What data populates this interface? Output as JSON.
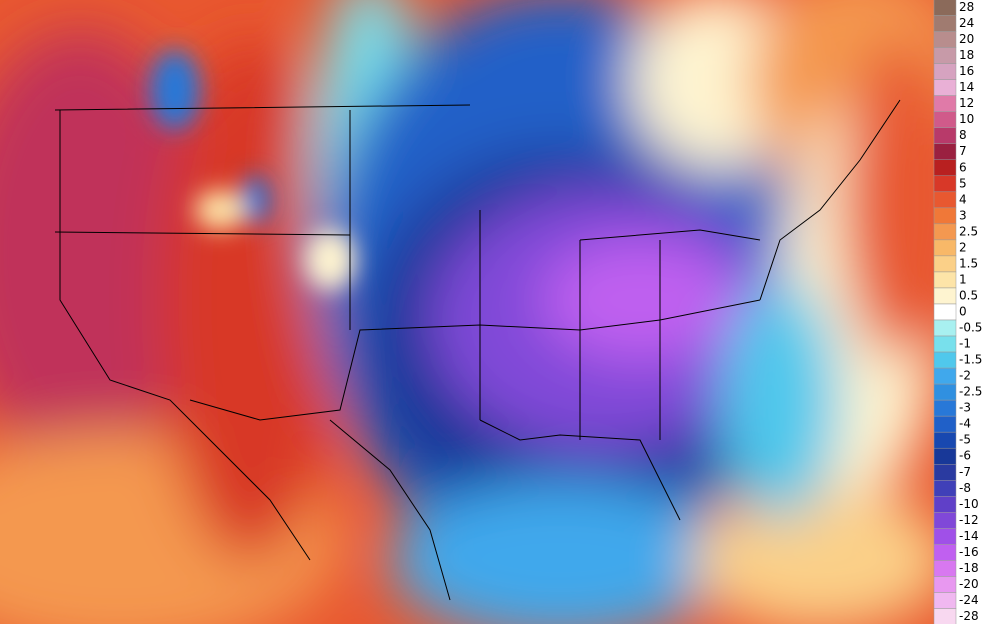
{
  "colorbar": {
    "labels": [
      "28",
      "24",
      "20",
      "18",
      "16",
      "14",
      "12",
      "10",
      "8",
      "7",
      "6",
      "5",
      "4",
      "3",
      "2.5",
      "2",
      "1.5",
      "1",
      "0.5",
      "0",
      "-0.5",
      "-1",
      "-1.5",
      "-2",
      "-2.5",
      "-3",
      "-4",
      "-5",
      "-6",
      "-7",
      "-8",
      "-10",
      "-12",
      "-14",
      "-16",
      "-18",
      "-20",
      "-24",
      "-28"
    ],
    "colors": [
      "#8b6a5a",
      "#a07b70",
      "#b88d8d",
      "#c79aa8",
      "#d6a3c0",
      "#e9b0d6",
      "#e07aa8",
      "#d05a8a",
      "#b83a6a",
      "#9a2040",
      "#b82020",
      "#d83828",
      "#e85830",
      "#f07838",
      "#f49850",
      "#f8b868",
      "#fbd088",
      "#fde4a8",
      "#fef4d0",
      "#ffffff",
      "#a8f0f0",
      "#78e0ec",
      "#50c8ec",
      "#40a8ec",
      "#3090e0",
      "#2878d8",
      "#2060c8",
      "#1848b0",
      "#183898",
      "#2a3aa0",
      "#4040b8",
      "#6040c8",
      "#8048d8",
      "#a050e8",
      "#c060f0",
      "#d878f0",
      "#e898f0",
      "#f0b8f0",
      "#f8d8f0"
    ]
  }
}
